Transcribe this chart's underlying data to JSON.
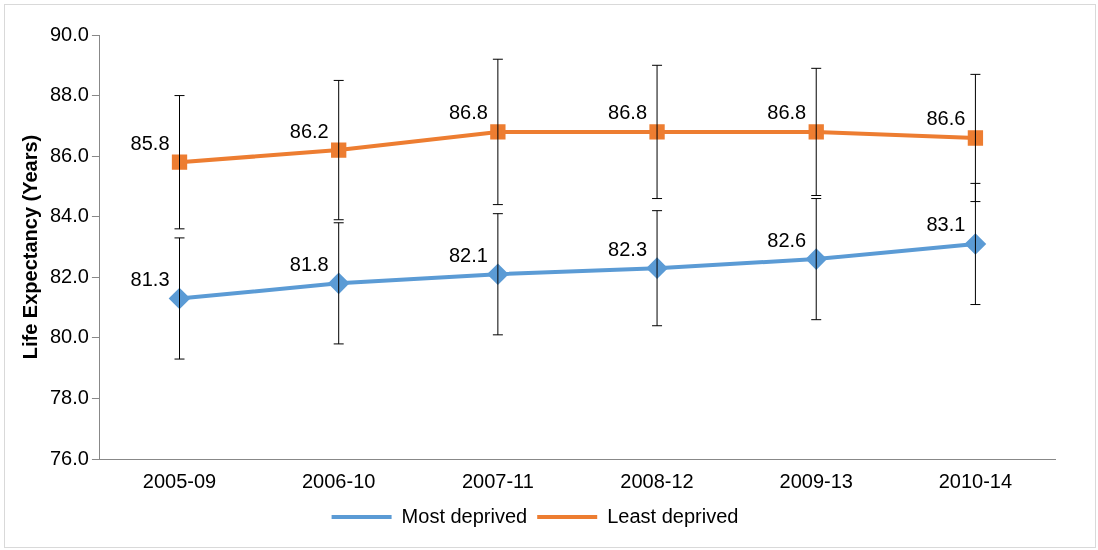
{
  "chart_data": {
    "type": "line",
    "ylabel": "Life Expectancy (Years)",
    "categories": [
      "2005-09",
      "2006-10",
      "2007-11",
      "2008-12",
      "2009-13",
      "2010-14"
    ],
    "series": [
      {
        "name": "Most deprived",
        "color": "#5b9bd5",
        "marker": "diamond",
        "values": [
          81.3,
          81.8,
          82.1,
          82.3,
          82.6,
          83.1
        ],
        "errors": [
          2.0,
          2.0,
          2.0,
          1.9,
          2.0,
          2.0
        ]
      },
      {
        "name": "Least deprived",
        "color": "#ed7d31",
        "marker": "square",
        "values": [
          85.8,
          86.2,
          86.8,
          86.8,
          86.8,
          86.6
        ],
        "errors": [
          2.2,
          2.3,
          2.4,
          2.2,
          2.1,
          2.1
        ]
      }
    ],
    "ylim": [
      76,
      90
    ],
    "yticks": [
      {
        "value": 76,
        "label": "76.0"
      },
      {
        "value": 78,
        "label": "78.0"
      },
      {
        "value": 80,
        "label": "80.0"
      },
      {
        "value": 82,
        "label": "82.0"
      },
      {
        "value": 84,
        "label": "84.0"
      },
      {
        "value": 86,
        "label": "86.0"
      },
      {
        "value": 88,
        "label": "88.0"
      },
      {
        "value": 90,
        "label": "90.0"
      }
    ],
    "grid": false,
    "legend": "bottom",
    "data_labels": true,
    "line_style": "solid"
  }
}
